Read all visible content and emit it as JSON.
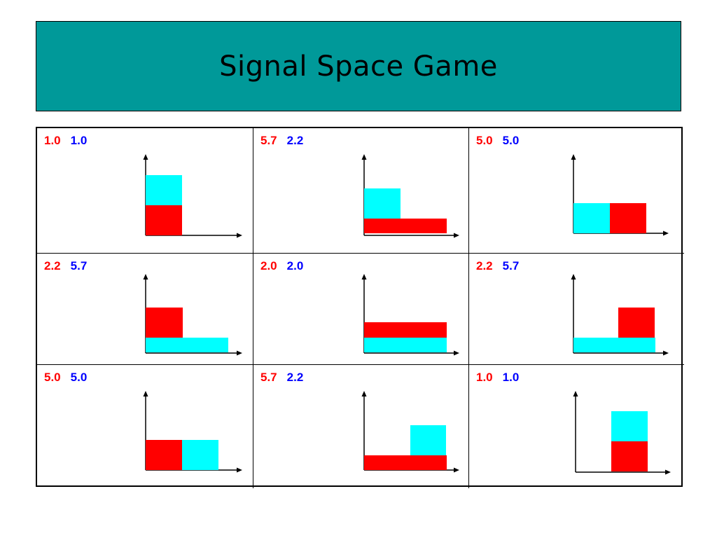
{
  "title": "Signal Space Game",
  "colors": {
    "title_background": "#009999",
    "red_player": "#ff0000",
    "blue_player": "#0000ff",
    "red_signal": "#ff0000",
    "cyan_signal": "#00ffff"
  },
  "cells": [
    {
      "payoffs": {
        "red": "1.0",
        "blue": "1.0"
      }
    },
    {
      "payoffs": {
        "red": "5.7",
        "blue": "2.2"
      }
    },
    {
      "payoffs": {
        "red": "5.0",
        "blue": "5.0"
      }
    },
    {
      "payoffs": {
        "red": "2.2",
        "blue": "5.7"
      }
    },
    {
      "payoffs": {
        "red": "2.0",
        "blue": "2.0"
      }
    },
    {
      "payoffs": {
        "red": "2.2",
        "blue": "5.7"
      }
    },
    {
      "payoffs": {
        "red": "5.0",
        "blue": "5.0"
      }
    },
    {
      "payoffs": {
        "red": "5.7",
        "blue": "2.2"
      }
    },
    {
      "payoffs": {
        "red": "1.0",
        "blue": "1.0"
      }
    }
  ]
}
